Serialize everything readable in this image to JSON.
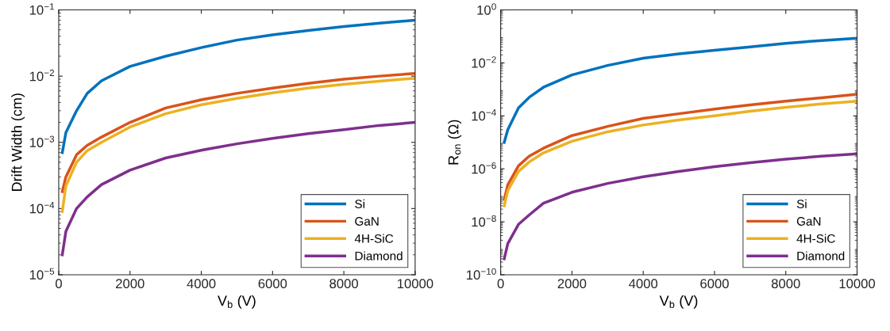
{
  "chart_data": [
    {
      "type": "line",
      "xlabel": "V$_{b}$ (V)",
      "ylabel": "Drift Width (cm)",
      "log": "y",
      "legend": "bottom right",
      "grid": false,
      "line_style": "solid",
      "x": [
        100,
        200,
        500,
        800,
        1200,
        2000,
        3000,
        4000,
        5000,
        6000,
        7000,
        8000,
        9000,
        10000
      ],
      "xlim": [
        0,
        10000
      ],
      "xticks": [
        0,
        2000,
        4000,
        6000,
        8000,
        10000
      ],
      "ylim": [
        1e-05,
        0.1
      ],
      "yticks": [
        {
          "value": 1e-05,
          "label": "10$^{−5}$"
        },
        {
          "value": 0.0001,
          "label": "10$^{−4}$"
        },
        {
          "value": 0.001,
          "label": "10$^{−3}$"
        },
        {
          "value": 0.01,
          "label": "10$^{−2}$"
        },
        {
          "value": 0.1,
          "label": "10$^{−1}$"
        }
      ],
      "series": [
        {
          "name": "Si",
          "color": "#0072bd",
          "values": [
            0.0007,
            0.0014,
            0.003,
            0.0055,
            0.0085,
            0.014,
            0.02,
            0.027,
            0.035,
            0.042,
            0.049,
            0.056,
            0.063,
            0.07
          ]
        },
        {
          "name": "GaN",
          "color": "#d95319",
          "values": [
            0.00018,
            0.0003,
            0.00065,
            0.0009,
            0.0012,
            0.002,
            0.0033,
            0.0044,
            0.0055,
            0.0066,
            0.0078,
            0.009,
            0.01,
            0.011
          ]
        },
        {
          "name": "4H-SiC",
          "color": "#edb120",
          "values": [
            9e-05,
            0.00022,
            0.0005,
            0.00075,
            0.001,
            0.0017,
            0.0027,
            0.0037,
            0.0046,
            0.0056,
            0.0066,
            0.0075,
            0.0084,
            0.0093
          ]
        },
        {
          "name": "Diamond",
          "color": "#7e2f8e",
          "values": [
            2e-05,
            4.5e-05,
            0.0001,
            0.00015,
            0.00023,
            0.00038,
            0.00058,
            0.00076,
            0.00095,
            0.00115,
            0.00135,
            0.00155,
            0.0018,
            0.002
          ]
        }
      ]
    },
    {
      "type": "line",
      "xlabel": "V$_{b}$ (V)",
      "ylabel": "R$_{on}$ (Ω)",
      "log": "y",
      "legend": "bottom right",
      "grid": false,
      "line_style": "solid",
      "x": [
        100,
        200,
        500,
        800,
        1200,
        2000,
        3000,
        4000,
        5000,
        6000,
        7000,
        8000,
        9000,
        10000
      ],
      "xlim": [
        0,
        10000
      ],
      "xticks": [
        0,
        2000,
        4000,
        6000,
        8000,
        10000
      ],
      "ylim": [
        1e-10,
        1
      ],
      "yticks": [
        {
          "value": 1e-10,
          "label": "10$^{−10}$"
        },
        {
          "value": 1e-08,
          "label": "10$^{−8}$"
        },
        {
          "value": 1e-06,
          "label": "10$^{−6}$"
        },
        {
          "value": 0.0001,
          "label": "10$^{−4}$"
        },
        {
          "value": 0.01,
          "label": "10$^{−2}$"
        },
        {
          "value": 1,
          "label": "10$^{0}$"
        }
      ],
      "series": [
        {
          "name": "Si",
          "color": "#0072bd",
          "values": [
            1e-05,
            3e-05,
            0.0002,
            0.0005,
            0.0012,
            0.0035,
            0.008,
            0.015,
            0.022,
            0.03,
            0.04,
            0.055,
            0.07,
            0.085
          ]
        },
        {
          "name": "GaN",
          "color": "#d95319",
          "values": [
            7e-08,
            2.5e-07,
            1.3e-06,
            3e-06,
            6e-06,
            1.8e-05,
            4e-05,
            8e-05,
            0.00012,
            0.00018,
            0.00026,
            0.00036,
            0.00048,
            0.00065
          ]
        },
        {
          "name": "4H-SiC",
          "color": "#edb120",
          "values": [
            4e-08,
            1.5e-07,
            8e-07,
            1.8e-06,
            4e-06,
            1.1e-05,
            2.5e-05,
            4.5e-05,
            7e-05,
            0.0001,
            0.00015,
            0.00021,
            0.00028,
            0.00036
          ]
        },
        {
          "name": "Diamond",
          "color": "#7e2f8e",
          "values": [
            4e-10,
            1.5e-09,
            8e-09,
            1.8e-08,
            5e-08,
            1.3e-07,
            2.8e-07,
            5e-07,
            8e-07,
            1.2e-06,
            1.7e-06,
            2.3e-06,
            3e-06,
            3.7e-06
          ]
        }
      ]
    }
  ]
}
